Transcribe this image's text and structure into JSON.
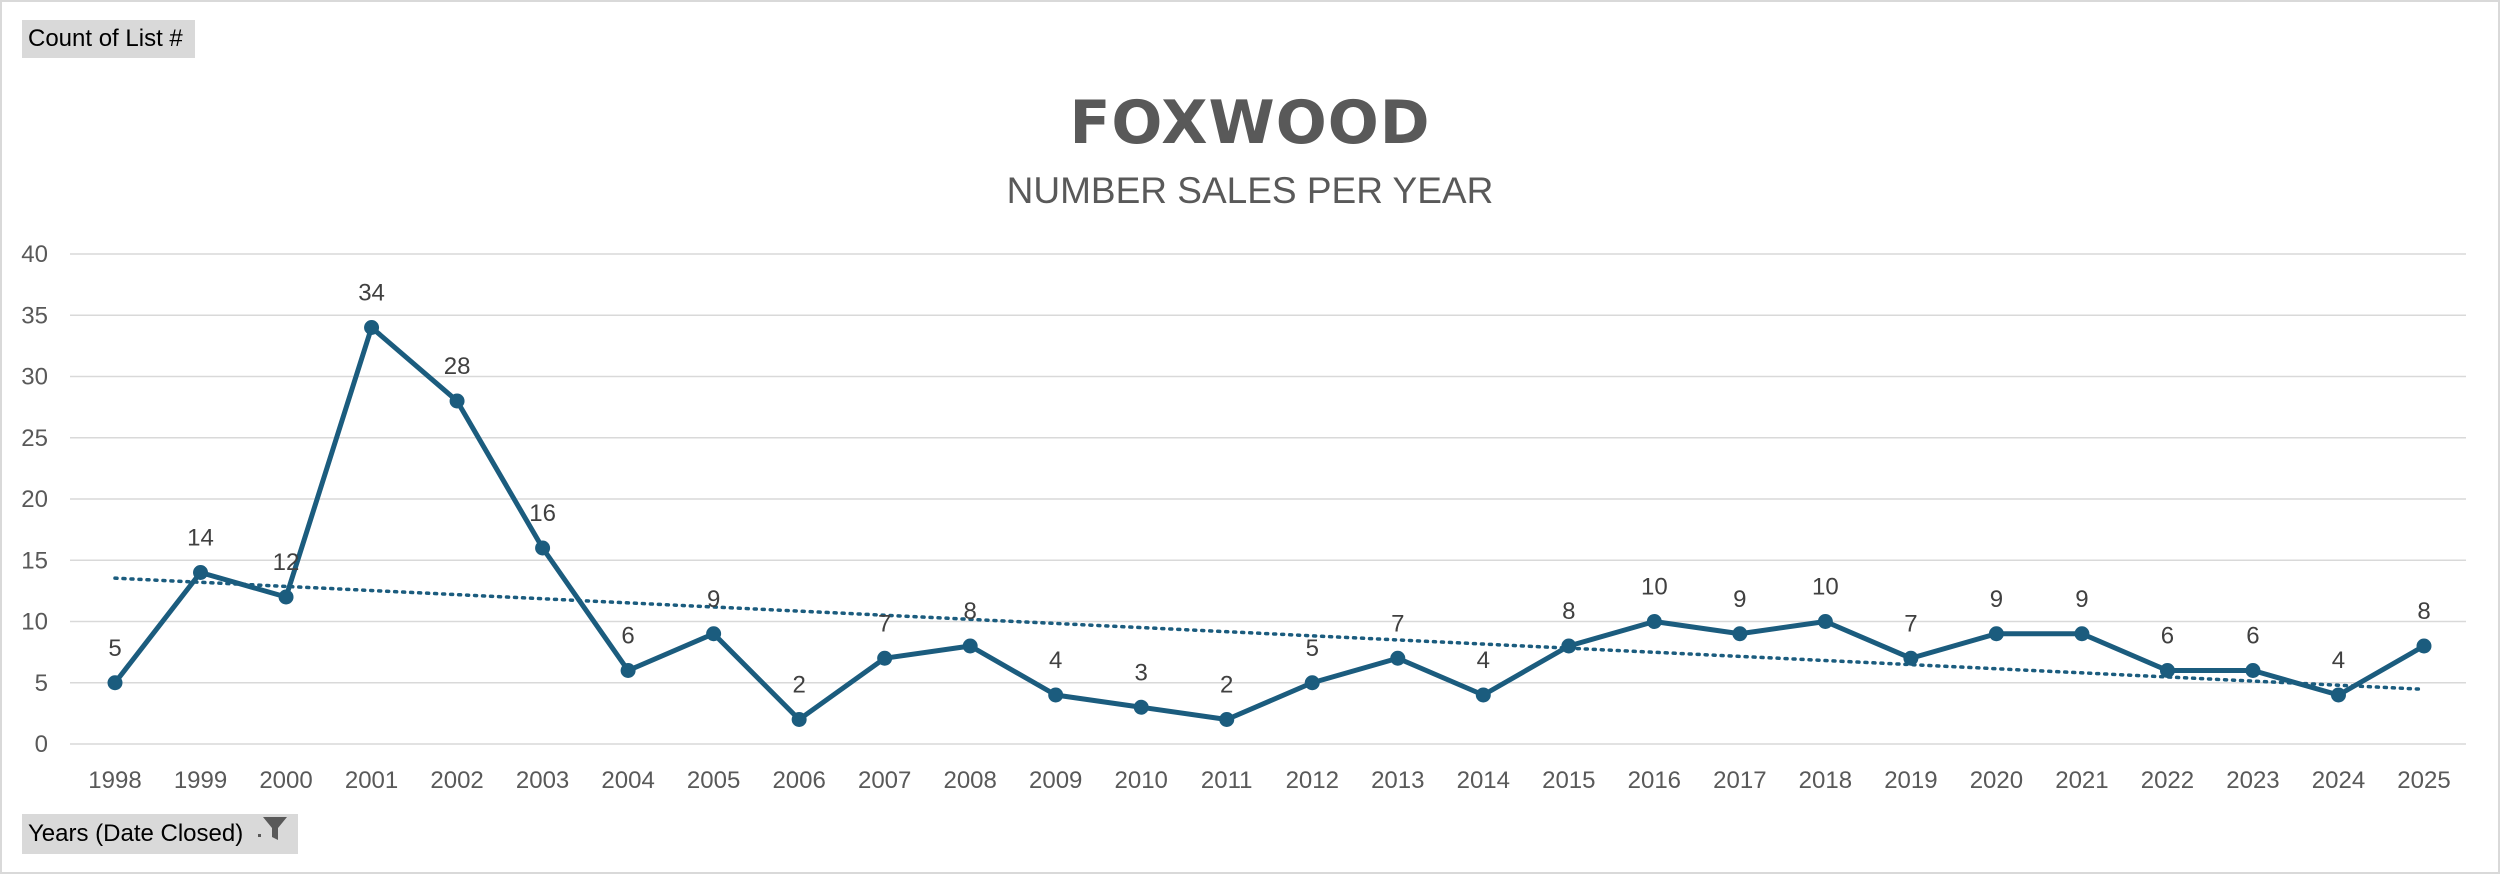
{
  "pivot": {
    "value_field_label": "Count of List #",
    "axis_field_label": "Years (Date Closed)",
    "axis_field_icon": "filter-icon"
  },
  "colors": {
    "series": "#1B5C7E",
    "trendline": "#1B5C7E",
    "grid": "#d9d9d9",
    "text": "#595959"
  },
  "chart_data": {
    "type": "line",
    "title": "FOXWOOD",
    "subtitle": "NUMBER SALES PER YEAR",
    "xlabel": "",
    "ylabel": "",
    "ylim": [
      0,
      40
    ],
    "yticks": [
      0,
      5,
      10,
      15,
      20,
      25,
      30,
      35,
      40
    ],
    "grid": true,
    "legend": "none",
    "data_labels": true,
    "trendline": "linear",
    "categories": [
      "1998",
      "1999",
      "2000",
      "2001",
      "2002",
      "2003",
      "2004",
      "2005",
      "2006",
      "2007",
      "2008",
      "2009",
      "2010",
      "2011",
      "2012",
      "2013",
      "2014",
      "2015",
      "2016",
      "2017",
      "2018",
      "2019",
      "2020",
      "2021",
      "2022",
      "2023",
      "2024",
      "2025"
    ],
    "series": [
      {
        "values": [
          5,
          14,
          12,
          34,
          28,
          16,
          6,
          9,
          2,
          7,
          8,
          4,
          3,
          2,
          5,
          7,
          4,
          8,
          10,
          9,
          10,
          7,
          9,
          9,
          6,
          6,
          4,
          8
        ]
      }
    ]
  }
}
